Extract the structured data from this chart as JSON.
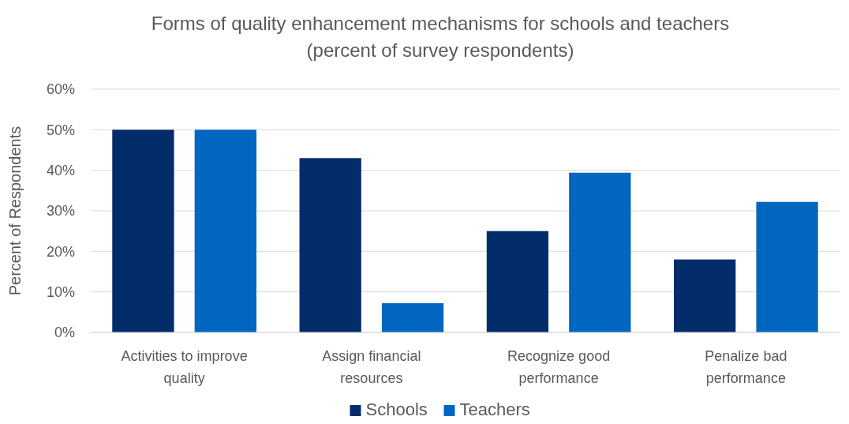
{
  "chart_data": {
    "type": "bar",
    "title": "Forms of quality enhancement mechanisms for schools and teachers",
    "subtitle": "(percent of survey respondents)",
    "ylabel": "Percent of Respondents",
    "categories": [
      "Activities to improve quality",
      "Assign financial resources",
      "Recognize good performance",
      "Penalize bad performance"
    ],
    "series": [
      {
        "name": "Schools",
        "color": "#022d6a",
        "values": [
          50,
          43,
          25,
          18
        ]
      },
      {
        "name": "Teachers",
        "color": "#0066bf",
        "values": [
          50,
          7.2,
          39.4,
          32.2
        ]
      }
    ],
    "ylim": [
      0,
      60
    ],
    "yticks": [
      {
        "value": 0,
        "label": "0%"
      },
      {
        "value": 10,
        "label": "10%"
      },
      {
        "value": 20,
        "label": "20%"
      },
      {
        "value": 30,
        "label": "30%"
      },
      {
        "value": 40,
        "label": "40%"
      },
      {
        "value": 50,
        "label": "50%"
      },
      {
        "value": 60,
        "label": "60%"
      }
    ],
    "grid": "y",
    "legend": "bottom"
  }
}
